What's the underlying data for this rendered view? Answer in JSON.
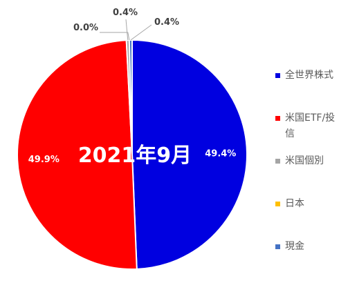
{
  "chart_data": {
    "type": "pie",
    "title": "2021年9月",
    "start_angle_deg": 0,
    "direction": "clockwise",
    "legend_position": "right",
    "slices": [
      {
        "label": "全世界株式",
        "value": 49.4,
        "display": "49.4%",
        "color": "#0000e0"
      },
      {
        "label": "米国ETF/投信",
        "value": 49.9,
        "display": "49.9%",
        "color": "#ff0000"
      },
      {
        "label": "米国個別",
        "value": 0.4,
        "display": "0.4%",
        "color": "#a5a5a5"
      },
      {
        "label": "日本",
        "value": 0.0,
        "display": "0.0%",
        "color": "#ffc000"
      },
      {
        "label": "現金",
        "value": 0.4,
        "display": "0.4%",
        "color": "#4472c4"
      }
    ]
  }
}
